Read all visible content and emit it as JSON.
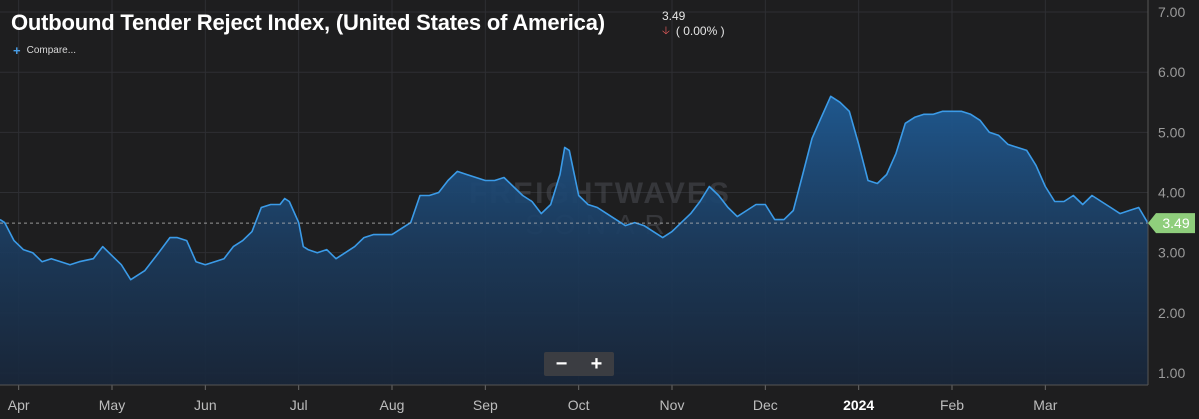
{
  "header": {
    "title": "Outbound Tender Reject Index, (United States of America)",
    "current_value": "3.49",
    "change": "( 0.00% )",
    "change_icon": "arrow-down-icon",
    "compare_label": "Compare..."
  },
  "watermark": {
    "line1": "FREIGHTWAVES",
    "line2": "SONAR"
  },
  "controls": {
    "zoom_out": "−",
    "zoom_in": "+"
  },
  "colors": {
    "line": "#3b9be8",
    "background": "#1e1e1f",
    "badge": "#8fce7c",
    "down": "#e05a5a"
  },
  "chart_data": {
    "type": "area",
    "title": "Outbound Tender Reject Index, (United States of America)",
    "x_ticks": [
      "Apr",
      "May",
      "Jun",
      "Jul",
      "Aug",
      "Sep",
      "Oct",
      "Nov",
      "Dec",
      "2024",
      "Feb",
      "Mar"
    ],
    "y_ticks": [
      "1.00",
      "2.00",
      "3.00",
      "4.00",
      "5.00",
      "6.00",
      "7.00"
    ],
    "ylim": [
      0.8,
      7.2
    ],
    "xlim": [
      0,
      12.3
    ],
    "grid": true,
    "current_value": 3.49,
    "current_label": "3.49",
    "series": [
      {
        "x": [
          0,
          0.05,
          0.15,
          0.25,
          0.35,
          0.45,
          0.55,
          0.65,
          0.75,
          0.85,
          1.0,
          1.1,
          1.2,
          1.3,
          1.4,
          1.55,
          1.7,
          1.82,
          1.9,
          2.0,
          2.1,
          2.2,
          2.3,
          2.4,
          2.5,
          2.6,
          2.7,
          2.8,
          2.9,
          3.0,
          3.05,
          3.1,
          3.2,
          3.25,
          3.3,
          3.4,
          3.5,
          3.6,
          3.7,
          3.8,
          3.9,
          4.0,
          4.1,
          4.2,
          4.3,
          4.4,
          4.5,
          4.6,
          4.7,
          4.8,
          4.9,
          5.0,
          5.1,
          5.2,
          5.3,
          5.4,
          5.5,
          5.6,
          5.7,
          5.8,
          5.9,
          6.0,
          6.05,
          6.1,
          6.2,
          6.3,
          6.4,
          6.5,
          6.6,
          6.7,
          6.8,
          6.9,
          7.0,
          7.1,
          7.2,
          7.3,
          7.4,
          7.5,
          7.6,
          7.7,
          7.8,
          7.9,
          8.0,
          8.1,
          8.2,
          8.3,
          8.4,
          8.5,
          8.6,
          8.7,
          8.8,
          8.9,
          9.0,
          9.1,
          9.2,
          9.3,
          9.4,
          9.5,
          9.6,
          9.7,
          9.8,
          9.9,
          10.0,
          10.1,
          10.2,
          10.3,
          10.4,
          10.5,
          10.6,
          10.7,
          10.8,
          10.9,
          11.0,
          11.1,
          11.2,
          11.3,
          11.4,
          11.5,
          11.6,
          11.7,
          11.8,
          11.9,
          12.0,
          12.1,
          12.2,
          12.3
        ],
        "values": [
          3.55,
          3.5,
          3.2,
          3.05,
          3.0,
          2.85,
          2.9,
          2.85,
          2.8,
          2.85,
          2.9,
          3.1,
          2.95,
          2.8,
          2.55,
          2.7,
          3.0,
          3.25,
          3.25,
          3.2,
          2.85,
          2.8,
          2.85,
          2.9,
          3.1,
          3.2,
          3.35,
          3.75,
          3.8,
          3.8,
          3.9,
          3.85,
          3.5,
          3.1,
          3.05,
          3.0,
          3.05,
          2.9,
          3.0,
          3.1,
          3.25,
          3.3,
          3.3,
          3.3,
          3.4,
          3.5,
          3.95,
          3.95,
          4.0,
          4.2,
          4.35,
          4.3,
          4.25,
          4.2,
          4.2,
          4.25,
          4.1,
          3.95,
          3.85,
          3.65,
          3.8,
          4.3,
          4.75,
          4.7,
          3.95,
          3.8,
          3.75,
          3.65,
          3.55,
          3.45,
          3.5,
          3.45,
          3.35,
          3.25,
          3.35,
          3.5,
          3.65,
          3.85,
          4.1,
          3.95,
          3.75,
          3.6,
          3.7,
          3.8,
          3.8,
          3.55,
          3.55,
          3.7,
          4.3,
          4.9,
          5.25,
          5.6,
          5.5,
          5.35,
          4.8,
          4.2,
          4.15,
          4.3,
          4.65,
          5.15,
          5.25,
          5.3,
          5.3,
          5.35,
          5.35,
          5.35,
          5.3,
          5.2,
          5.0,
          4.95,
          4.8,
          4.75,
          4.7,
          4.45,
          4.1,
          3.85,
          3.85,
          3.95,
          3.8,
          3.95,
          3.85,
          3.75,
          3.65,
          3.7,
          3.75,
          3.49
        ]
      }
    ]
  }
}
